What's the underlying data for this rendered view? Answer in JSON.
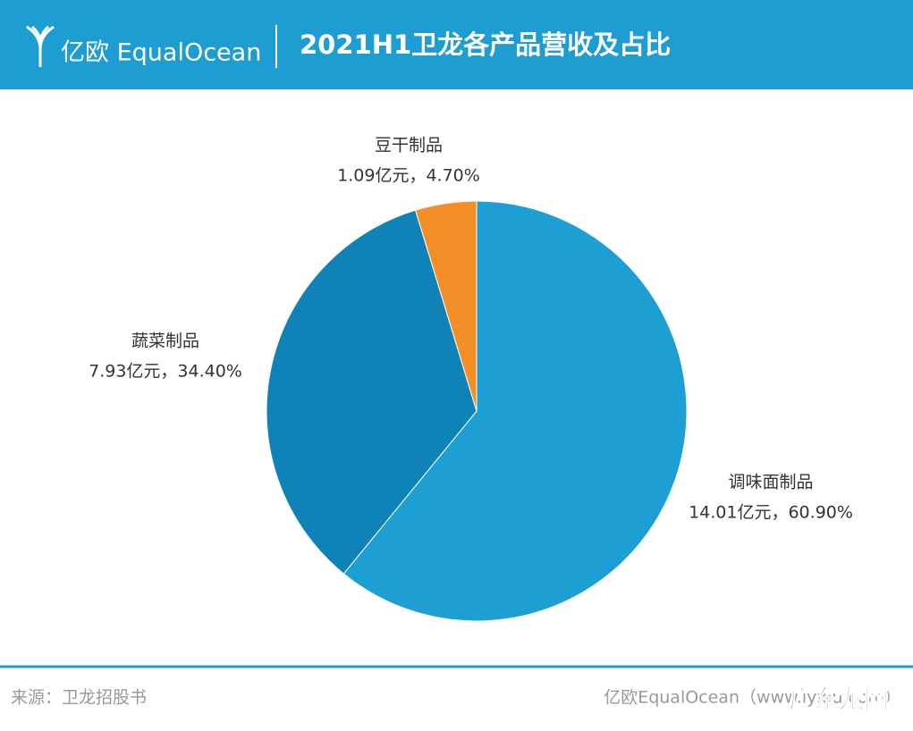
{
  "header": {
    "logo": "亿欧 EqualOcean"
  },
  "chart_data": {
    "type": "pie",
    "title": "2021H1卫龙各产品营收及占比",
    "categories": [
      "调味面制品",
      "蔬菜制品",
      "豆干制品"
    ],
    "values": [
      60.9,
      34.4,
      4.7
    ],
    "value_labels": [
      "14.01亿元，60.90%",
      "7.93亿元，34.40%",
      "1.09亿元，4.70%"
    ],
    "colors": [
      "#1e9fd4",
      "#0f82b7",
      "#f48e26"
    ]
  },
  "footer": {
    "source": "来源：卫龙招股书",
    "credit": "亿欧EqualOcean（www.iyiou.com）",
    "watermark": "广东龙网"
  }
}
